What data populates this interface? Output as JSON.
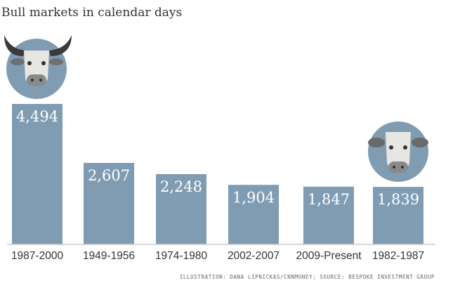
{
  "title": "Bull markets in calendar days",
  "credit": "ILLUSTRATION: DANA LIPNICKAS/CNNMONEY; SOURCE: BESPOKE INVESTMENT GROUP",
  "colors": {
    "bar": "#7f9cb3",
    "axis": "#c8c8c8",
    "bull_circle": "#7f9cb3"
  },
  "icons": [
    "bull-head-with-horns-icon",
    "bull-head-small-icon"
  ],
  "chart_data": {
    "type": "bar",
    "title": "Bull markets in calendar days",
    "categories": [
      "1987-2000",
      "1949-1956",
      "1974-1980",
      "2002-2007",
      "2009-Present",
      "1982-1987"
    ],
    "values": [
      4494,
      2607,
      2248,
      1904,
      1847,
      1839
    ],
    "value_labels": [
      "4,494",
      "2,607",
      "2,248",
      "1,904",
      "1,847",
      "1,839"
    ],
    "xlabel": "",
    "ylabel": "",
    "ylim": [
      0,
      4494
    ],
    "grid": false,
    "legend": "none"
  }
}
